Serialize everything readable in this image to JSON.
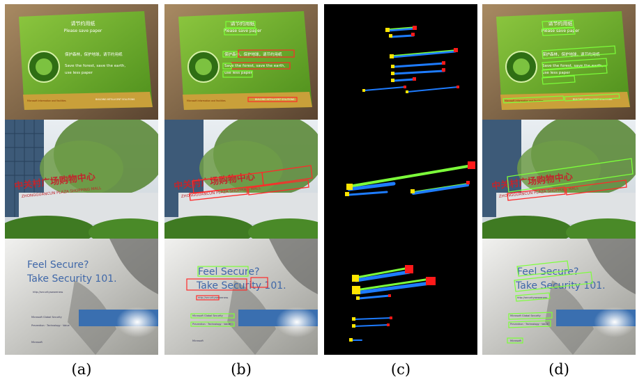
{
  "figure": {
    "captions": [
      "(a)",
      "(b)",
      "(c)",
      "(d)"
    ],
    "row1_sign": {
      "title_cn": "请节约用纸",
      "title_en": "Please save paper",
      "line_cn": "保护森林，保护地球，请节约用纸",
      "line_en1": "Save the forest, save the earth,",
      "line_en2": "use less paper",
      "footer_left": "Microsoft Information and Facilities",
      "footer_right": "BUILDING INTELLIGENT SOLUTIONS"
    },
    "row2_sign": {
      "title_cn": "中关村广场购物中心",
      "title_en": "ZHONGGUANCUN PLAZA SHOPPING MALL"
    },
    "row3_poster": {
      "line1": "Feel Secure?",
      "line2": "Take Security 101.",
      "url": "http://securityawareness",
      "label1": "Microsoft Global Security",
      "label2": "Prevention · Technology · Value",
      "logo": "Microsoft"
    }
  }
}
